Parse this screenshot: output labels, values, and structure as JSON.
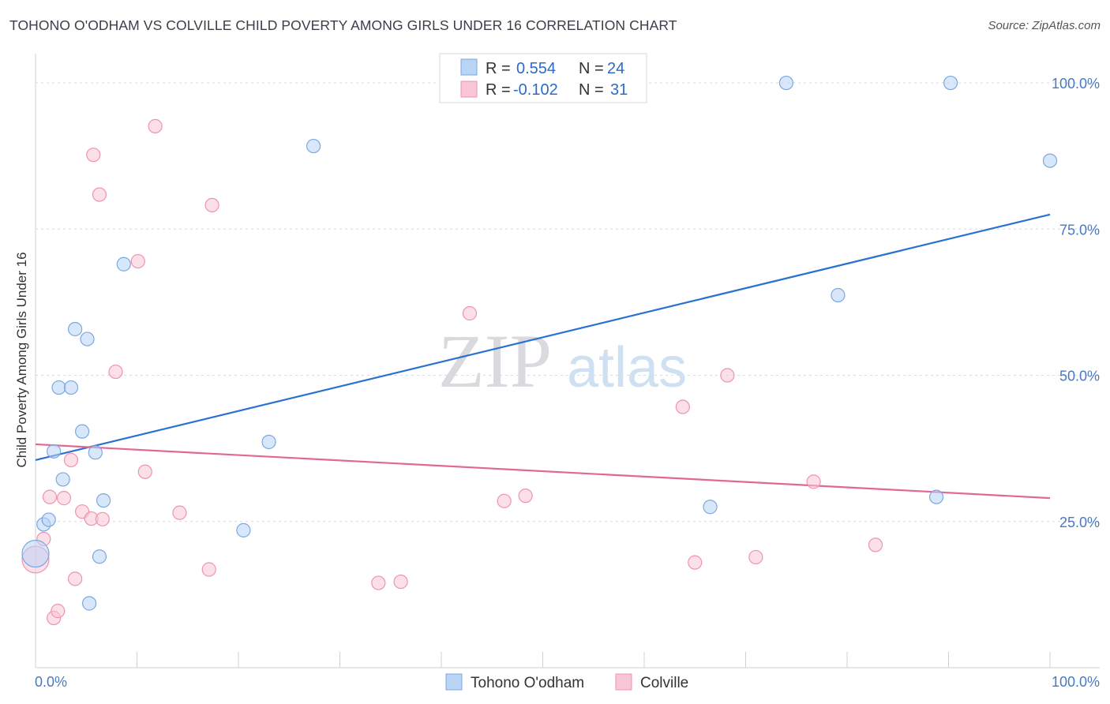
{
  "title": "TOHONO O'ODHAM VS COLVILLE CHILD POVERTY AMONG GIRLS UNDER 16 CORRELATION CHART",
  "source": "Source: ZipAtlas.com",
  "watermark": {
    "zip": "ZIP",
    "atlas": "atlas"
  },
  "colors": {
    "blue_fill": "#b9d4f5",
    "blue_stroke": "#7aa8e0",
    "blue_line": "#2a72d0",
    "pink_fill": "#f9c6d6",
    "pink_stroke": "#ee93b0",
    "pink_line": "#e06893",
    "grid": "#d8d8e0",
    "axis_label": "#4a78c2"
  },
  "legend_box": {
    "rows": [
      {
        "r_label": "R = ",
        "r_value": "0.554",
        "n_label": "N = ",
        "n_value": "24",
        "series": "blue"
      },
      {
        "r_label": "R = ",
        "r_value": "-0.102",
        "n_label": "N = ",
        "n_value": "31",
        "series": "pink"
      }
    ]
  },
  "chart_data": {
    "type": "scatter",
    "title": "TOHONO O'ODHAM VS COLVILLE CHILD POVERTY AMONG GIRLS UNDER 16 CORRELATION CHART",
    "xlabel": "",
    "ylabel": "Child Poverty Among Girls Under 16",
    "xlim": [
      0,
      100
    ],
    "ylim": [
      0,
      105
    ],
    "x_tick_labels": [
      "0.0%",
      "100.0%"
    ],
    "y_ticks": [
      25,
      50,
      75,
      100
    ],
    "y_tick_labels": [
      "25.0%",
      "50.0%",
      "75.0%",
      "100.0%"
    ],
    "grid": true,
    "legend_position": "bottom-center",
    "series": [
      {
        "name": "Tohono O'odham",
        "color": "blue",
        "r": 0.554,
        "n": 24,
        "trend": {
          "x": [
            0,
            100
          ],
          "y": [
            35.5,
            77.5
          ]
        },
        "points": [
          {
            "x": 0.0,
            "y": 19.5,
            "big": true
          },
          {
            "x": 0.8,
            "y": 24.5
          },
          {
            "x": 1.3,
            "y": 25.3
          },
          {
            "x": 1.8,
            "y": 37.0
          },
          {
            "x": 2.3,
            "y": 47.9
          },
          {
            "x": 2.7,
            "y": 32.2
          },
          {
            "x": 3.5,
            "y": 47.9
          },
          {
            "x": 3.9,
            "y": 57.9
          },
          {
            "x": 4.6,
            "y": 40.4
          },
          {
            "x": 5.1,
            "y": 56.2
          },
          {
            "x": 5.3,
            "y": 11.0
          },
          {
            "x": 5.9,
            "y": 36.8
          },
          {
            "x": 6.3,
            "y": 19.0
          },
          {
            "x": 6.7,
            "y": 28.6
          },
          {
            "x": 8.7,
            "y": 69.0
          },
          {
            "x": 20.5,
            "y": 23.5
          },
          {
            "x": 23.0,
            "y": 38.6
          },
          {
            "x": 27.4,
            "y": 89.2
          },
          {
            "x": 66.5,
            "y": 27.5
          },
          {
            "x": 74.0,
            "y": 100.0
          },
          {
            "x": 79.1,
            "y": 63.7
          },
          {
            "x": 88.8,
            "y": 29.2
          },
          {
            "x": 90.2,
            "y": 100.0
          },
          {
            "x": 100.0,
            "y": 86.7
          }
        ]
      },
      {
        "name": "Colville",
        "color": "pink",
        "r": -0.102,
        "n": 31,
        "trend": {
          "x": [
            0,
            100
          ],
          "y": [
            38.2,
            29.0
          ]
        },
        "points": [
          {
            "x": 0.0,
            "y": 18.5,
            "big": true
          },
          {
            "x": 0.8,
            "y": 22.0
          },
          {
            "x": 1.4,
            "y": 29.2
          },
          {
            "x": 1.8,
            "y": 8.5
          },
          {
            "x": 2.2,
            "y": 9.7
          },
          {
            "x": 2.8,
            "y": 29.0
          },
          {
            "x": 3.5,
            "y": 35.5
          },
          {
            "x": 3.9,
            "y": 15.2
          },
          {
            "x": 4.6,
            "y": 26.7
          },
          {
            "x": 5.5,
            "y": 25.5
          },
          {
            "x": 5.7,
            "y": 87.7
          },
          {
            "x": 6.3,
            "y": 80.9
          },
          {
            "x": 6.6,
            "y": 25.4
          },
          {
            "x": 7.9,
            "y": 50.6
          },
          {
            "x": 10.1,
            "y": 69.5
          },
          {
            "x": 10.8,
            "y": 33.5
          },
          {
            "x": 11.8,
            "y": 92.6
          },
          {
            "x": 14.2,
            "y": 26.5
          },
          {
            "x": 17.1,
            "y": 16.8
          },
          {
            "x": 17.4,
            "y": 79.1
          },
          {
            "x": 33.8,
            "y": 14.5
          },
          {
            "x": 36.0,
            "y": 14.7
          },
          {
            "x": 42.8,
            "y": 60.6
          },
          {
            "x": 46.2,
            "y": 28.5
          },
          {
            "x": 48.3,
            "y": 29.4
          },
          {
            "x": 63.8,
            "y": 44.6
          },
          {
            "x": 65.0,
            "y": 18.0
          },
          {
            "x": 68.2,
            "y": 50.0
          },
          {
            "x": 71.0,
            "y": 18.9
          },
          {
            "x": 76.7,
            "y": 31.8
          },
          {
            "x": 82.8,
            "y": 21.0
          }
        ]
      }
    ]
  }
}
